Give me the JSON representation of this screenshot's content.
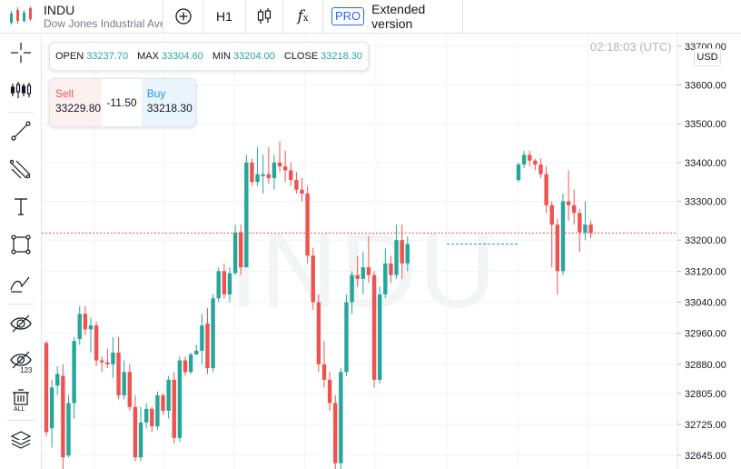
{
  "header": {
    "ticker": "INDU",
    "description": "Dow Jones Industrial Ave",
    "interval": "H1",
    "pro_badge": "PRO",
    "extended_label": "Extended version"
  },
  "chart": {
    "time": "02:18:03 (UTC)",
    "currency": "USD",
    "watermark": "INDU",
    "ohlc": {
      "open_label": "OPEN",
      "open": "33237.70",
      "max_label": "MAX",
      "max": "33304.60",
      "min_label": "MIN",
      "min": "33204.00",
      "close_label": "CLOSE",
      "close": "33218.30"
    },
    "trade": {
      "sell_label": "Sell",
      "sell_price": "33229.80",
      "spread": "-11.50",
      "buy_label": "Buy",
      "buy_price": "33218.30"
    }
  },
  "colors": {
    "up": "#26a69a",
    "down": "#ef5350",
    "accent": "#2962ff"
  },
  "left_tools": [
    "crosshair-icon",
    "indicators-icon",
    "trendline-icon",
    "fib-icon",
    "text-icon",
    "rectangle-icon",
    "brush-icon",
    "hide-drawings-icon",
    "hide-labels-icon",
    "delete-all-icon",
    "layers-icon"
  ],
  "chart_data": {
    "type": "candlestick",
    "y_ticks": [
      "33700.00",
      "33600.00",
      "33500.00",
      "33400.00",
      "33300.00",
      "33200.00",
      "33120.00",
      "33040.00",
      "32960.00",
      "32880.00",
      "32805.00",
      "32725.00",
      "32645.00"
    ],
    "ylim": [
      32610,
      33730
    ],
    "current_price": 33218.3,
    "candles": [
      [
        32935,
        32940,
        32695,
        32705
      ],
      [
        32715,
        32840,
        32665,
        32820
      ],
      [
        32825,
        32875,
        32800,
        32855
      ],
      [
        32850,
        32880,
        32610,
        32640
      ],
      [
        32645,
        32800,
        32640,
        32780
      ],
      [
        32780,
        32950,
        32740,
        32940
      ],
      [
        32945,
        33030,
        32930,
        33010
      ],
      [
        33010,
        33030,
        32955,
        32970
      ],
      [
        32970,
        33000,
        32910,
        32980
      ],
      [
        32980,
        32990,
        32875,
        32890
      ],
      [
        32890,
        32900,
        32860,
        32885
      ],
      [
        32885,
        32920,
        32870,
        32880
      ],
      [
        32880,
        32950,
        32845,
        32910
      ],
      [
        32910,
        32950,
        32790,
        32800
      ],
      [
        32800,
        32890,
        32790,
        32860
      ],
      [
        32860,
        32880,
        32760,
        32770
      ],
      [
        32770,
        32800,
        32630,
        32640
      ],
      [
        32640,
        32770,
        32630,
        32730
      ],
      [
        32730,
        32780,
        32715,
        32765
      ],
      [
        32765,
        32770,
        32705,
        32720
      ],
      [
        32720,
        32810,
        32710,
        32800
      ],
      [
        32800,
        32805,
        32750,
        32760
      ],
      [
        32760,
        32850,
        32740,
        32840
      ],
      [
        32840,
        32860,
        32675,
        32690
      ],
      [
        32690,
        32900,
        32680,
        32890
      ],
      [
        32890,
        32900,
        32850,
        32860
      ],
      [
        32860,
        32910,
        32855,
        32905
      ],
      [
        32905,
        32930,
        32910,
        32915
      ],
      [
        32915,
        33010,
        32880,
        32980
      ],
      [
        32985,
        33025,
        32855,
        32870
      ],
      [
        32870,
        33060,
        32860,
        33050
      ],
      [
        33050,
        33130,
        33040,
        33120
      ],
      [
        33120,
        33140,
        33050,
        33060
      ],
      [
        33060,
        33130,
        33040,
        33115
      ],
      [
        33115,
        33240,
        33110,
        33220
      ],
      [
        33220,
        33240,
        33110,
        33130
      ],
      [
        33130,
        33420,
        33130,
        33400
      ],
      [
        33400,
        33410,
        33340,
        33350
      ],
      [
        33350,
        33440,
        33340,
        33370
      ],
      [
        33365,
        33420,
        33320,
        33370
      ],
      [
        33370,
        33440,
        33345,
        33360
      ],
      [
        33360,
        33420,
        33330,
        33400
      ],
      [
        33400,
        33455,
        33375,
        33390
      ],
      [
        33390,
        33430,
        33350,
        33380
      ],
      [
        33380,
        33400,
        33340,
        33355
      ],
      [
        33355,
        33375,
        33320,
        33330
      ],
      [
        33330,
        33360,
        33300,
        33320
      ],
      [
        33320,
        33340,
        33140,
        33160
      ],
      [
        33160,
        33180,
        33020,
        33040
      ],
      [
        33040,
        33060,
        32860,
        32880
      ],
      [
        32880,
        32940,
        32820,
        32840
      ],
      [
        32840,
        32860,
        32760,
        32780
      ],
      [
        32780,
        32800,
        32600,
        32625
      ],
      [
        32625,
        32870,
        32610,
        32860
      ],
      [
        32860,
        33060,
        32850,
        33040
      ],
      [
        33040,
        33120,
        33010,
        33110
      ],
      [
        33110,
        33160,
        33080,
        33100
      ],
      [
        33100,
        33170,
        33060,
        33130
      ],
      [
        33130,
        33210,
        33090,
        33110
      ],
      [
        33110,
        33120,
        32820,
        32840
      ],
      [
        32840,
        33080,
        32830,
        33060
      ],
      [
        33060,
        33180,
        33050,
        33140
      ],
      [
        33140,
        33160,
        33090,
        33110
      ],
      [
        33110,
        33240,
        33100,
        33200
      ],
      [
        33200,
        33240,
        33100,
        33140
      ],
      [
        33140,
        33210,
        33120,
        33190
      ],
      [
        33355,
        33400,
        33350,
        33395
      ],
      [
        33395,
        33430,
        33385,
        33420
      ],
      [
        33420,
        33430,
        33390,
        33405
      ],
      [
        33405,
        33410,
        33380,
        33395
      ],
      [
        33395,
        33410,
        33360,
        33370
      ],
      [
        33370,
        33390,
        33270,
        33290
      ],
      [
        33290,
        33300,
        33130,
        33240
      ],
      [
        33240,
        33255,
        33060,
        33120
      ],
      [
        33120,
        33320,
        33110,
        33300
      ],
      [
        33300,
        33380,
        33250,
        33290
      ],
      [
        33290,
        33330,
        33240,
        33270
      ],
      [
        33270,
        33280,
        33170,
        33220
      ],
      [
        33220,
        33300,
        33200,
        33240
      ],
      [
        33240,
        33250,
        33205,
        33218
      ]
    ]
  }
}
